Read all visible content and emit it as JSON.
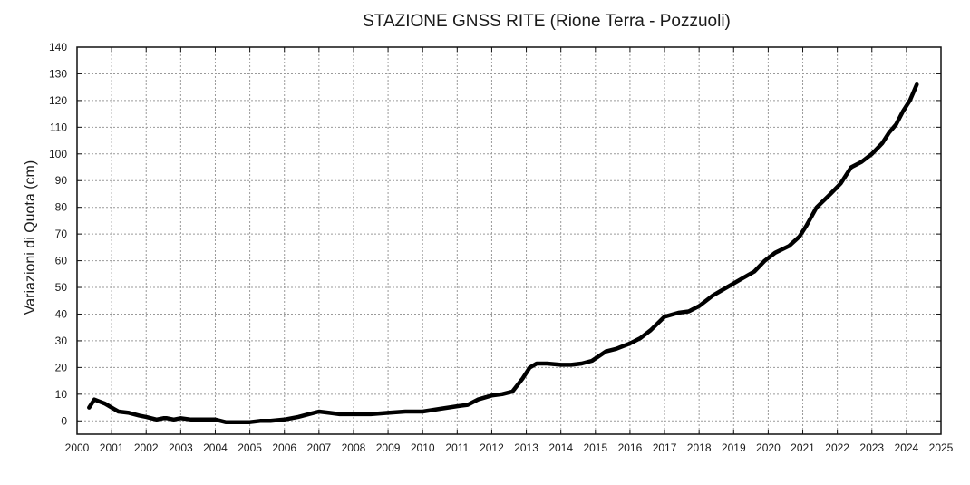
{
  "chart_data": {
    "type": "line",
    "title": "STAZIONE GNSS RITE (Rione Terra - Pozzuoli)",
    "xlabel": "",
    "ylabel": "Variazioni di Quota (cm)",
    "xlim": [
      2000,
      2025
    ],
    "ylim": [
      -5,
      140
    ],
    "x_ticks": [
      2000,
      2001,
      2002,
      2003,
      2004,
      2005,
      2006,
      2007,
      2008,
      2009,
      2010,
      2011,
      2012,
      2013,
      2014,
      2015,
      2016,
      2017,
      2018,
      2019,
      2020,
      2021,
      2022,
      2023,
      2024,
      2025
    ],
    "y_ticks": [
      0,
      10,
      20,
      30,
      40,
      50,
      60,
      70,
      80,
      90,
      100,
      110,
      120,
      130,
      140
    ],
    "grid": true,
    "legend": "none",
    "series": [
      {
        "color": "#000000",
        "x": [
          2000.35,
          2000.5,
          2000.6,
          2000.8,
          2001.0,
          2001.2,
          2001.5,
          2001.8,
          2002.0,
          2002.3,
          2002.5,
          2002.6,
          2002.8,
          2003.0,
          2003.3,
          2003.6,
          2004.0,
          2004.3,
          2004.6,
          2005.0,
          2005.3,
          2005.6,
          2006.0,
          2006.4,
          2006.7,
          2007.0,
          2007.3,
          2007.6,
          2008.0,
          2008.5,
          2009.0,
          2009.5,
          2010.0,
          2010.5,
          2011.0,
          2011.3,
          2011.6,
          2012.0,
          2012.3,
          2012.6,
          2012.9,
          2013.1,
          2013.3,
          2013.6,
          2014.0,
          2014.3,
          2014.6,
          2014.9,
          2015.3,
          2015.6,
          2016.0,
          2016.3,
          2016.6,
          2017.0,
          2017.4,
          2017.7,
          2018.0,
          2018.4,
          2018.8,
          2019.2,
          2019.6,
          2019.9,
          2020.2,
          2020.6,
          2020.9,
          2021.1,
          2021.4,
          2021.8,
          2022.1,
          2022.4,
          2022.7,
          2023.0,
          2023.3,
          2023.5,
          2023.7,
          2023.9,
          2024.1,
          2024.3
        ],
        "y": [
          5,
          8,
          7.5,
          6.5,
          5,
          3.5,
          3,
          2,
          1.5,
          0.5,
          1,
          1,
          0.5,
          1,
          0.5,
          0.5,
          0.5,
          -0.5,
          -0.5,
          -0.5,
          0,
          0,
          0.5,
          1.5,
          2.5,
          3.5,
          3,
          2.5,
          2.5,
          2.5,
          3,
          3.5,
          3.5,
          4.5,
          5.5,
          6,
          8,
          9.5,
          10,
          11,
          16,
          20,
          21.5,
          21.5,
          21,
          21,
          21.5,
          22.5,
          26,
          27,
          29,
          31,
          34,
          39,
          40.5,
          41,
          43,
          47,
          50,
          53,
          56,
          60,
          63,
          65.5,
          69,
          73,
          80,
          85,
          89,
          95,
          97,
          100,
          104,
          108,
          111,
          116,
          120,
          126
        ]
      }
    ]
  }
}
